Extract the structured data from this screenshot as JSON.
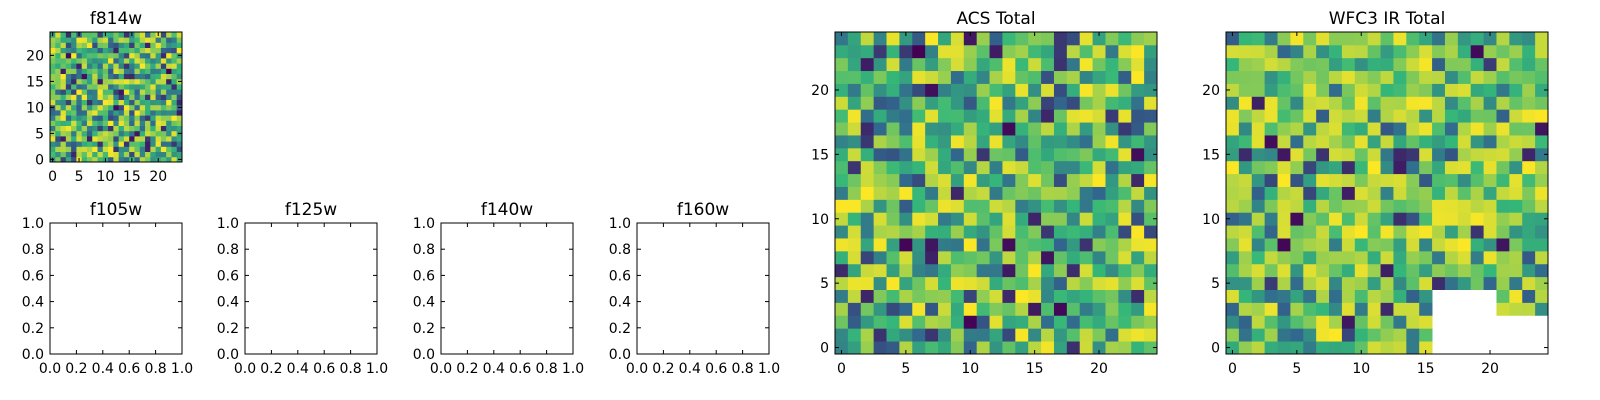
{
  "colormap": [
    "#440154",
    "#31688e",
    "#35b779",
    "#fde725"
  ],
  "chart_data": [
    {
      "type": "heatmap",
      "id": "f814w",
      "title": "f814w",
      "grid": 25,
      "xlim": [
        0,
        24
      ],
      "ylim": [
        0,
        24
      ],
      "xticks": [
        "0",
        "5",
        "10",
        "15",
        "20"
      ],
      "yticks": [
        "0",
        "5",
        "10",
        "15",
        "20"
      ],
      "seed": 7,
      "low_bias": 0.5,
      "missing_cells": []
    },
    {
      "type": "heatmap",
      "id": "acs-total",
      "title": "ACS Total",
      "grid": 25,
      "xlim": [
        0,
        24
      ],
      "ylim": [
        0,
        24
      ],
      "xticks": [
        "0",
        "5",
        "10",
        "15",
        "20"
      ],
      "yticks": [
        "0",
        "5",
        "10",
        "15",
        "20"
      ],
      "seed": 11,
      "low_bias": 0.55,
      "missing_cells": []
    },
    {
      "type": "heatmap",
      "id": "wfc3-ir-total",
      "title": "WFC3 IR Total",
      "grid": 25,
      "xlim": [
        0,
        24
      ],
      "ylim": [
        0,
        24
      ],
      "xticks": [
        "0",
        "5",
        "10",
        "15",
        "20"
      ],
      "yticks": [
        "0",
        "5",
        "10",
        "15",
        "20"
      ],
      "seed": 23,
      "low_bias": 0.35,
      "missing_cells": [
        {
          "x_from": 16,
          "x_to": 24,
          "y_from": 0,
          "y_to": 2
        },
        {
          "x_from": 16,
          "x_to": 20,
          "y_from": 3,
          "y_to": 4
        }
      ]
    },
    {
      "type": "empty",
      "id": "f105w",
      "title": "f105w",
      "xlim": [
        0,
        1
      ],
      "ylim": [
        0,
        1
      ],
      "xticks": [
        "0.0",
        "0.2",
        "0.4",
        "0.6",
        "0.8",
        "1.0"
      ],
      "yticks": [
        "0.0",
        "0.2",
        "0.4",
        "0.6",
        "0.8",
        "1.0"
      ]
    },
    {
      "type": "empty",
      "id": "f125w",
      "title": "f125w",
      "xlim": [
        0,
        1
      ],
      "ylim": [
        0,
        1
      ],
      "xticks": [
        "0.0",
        "0.2",
        "0.4",
        "0.6",
        "0.8",
        "1.0"
      ],
      "yticks": [
        "0.0",
        "0.2",
        "0.4",
        "0.6",
        "0.8",
        "1.0"
      ]
    },
    {
      "type": "empty",
      "id": "f140w",
      "title": "f140w",
      "xlim": [
        0,
        1
      ],
      "ylim": [
        0,
        1
      ],
      "xticks": [
        "0.0",
        "0.2",
        "0.4",
        "0.6",
        "0.8",
        "1.0"
      ],
      "yticks": [
        "0.0",
        "0.2",
        "0.4",
        "0.6",
        "0.8",
        "1.0"
      ]
    },
    {
      "type": "empty",
      "id": "f160w",
      "title": "f160w",
      "xlim": [
        0,
        1
      ],
      "ylim": [
        0,
        1
      ],
      "xticks": [
        "0.0",
        "0.2",
        "0.4",
        "0.6",
        "0.8",
        "1.0"
      ],
      "yticks": [
        "0.0",
        "0.2",
        "0.4",
        "0.6",
        "0.8",
        "1.0"
      ]
    }
  ]
}
